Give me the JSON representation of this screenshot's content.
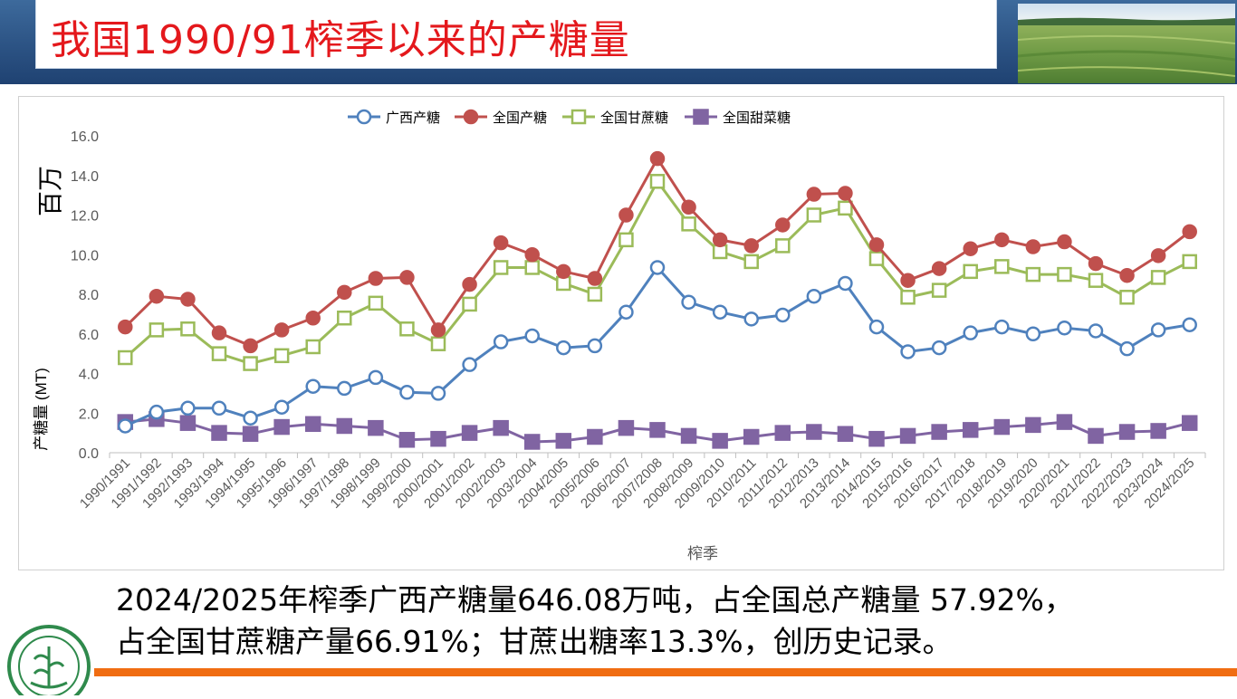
{
  "slide": {
    "title": "我国1990/91榨季以来的产糖量",
    "caption_line1": "2024/2025年榨季广西产糖量646.08万吨，占全国总产糖量 57.92%，",
    "caption_line2": "占全国甘蔗糖产量66.91%；甘蔗出糖率13.3%，创历史记录。"
  },
  "colors": {
    "header": "#2c5384",
    "title": "#e4181c",
    "accent_bar": "#f06d12",
    "series": [
      "#4f81bd",
      "#c0504d",
      "#9bbb59",
      "#8064a2"
    ]
  },
  "chart_data": {
    "type": "line",
    "xlabel": "榨季",
    "ylabel": "产糖量 (MT)",
    "unit_label": "百万",
    "ylim": [
      0,
      16
    ],
    "ytick_step": 2,
    "ytick_labels": [
      "0.0",
      "2.0",
      "4.0",
      "6.0",
      "8.0",
      "10.0",
      "12.0",
      "14.0",
      "16.0"
    ],
    "grid": false,
    "legend_position": "top",
    "categories": [
      "1990/1991",
      "1991/1992",
      "1992/1993",
      "1993/1994",
      "1994/1995",
      "1995/1996",
      "1996/1997",
      "1997/1998",
      "1998/1999",
      "1999/2000",
      "2000/2001",
      "2001/2002",
      "2002/2003",
      "2003/2004",
      "2004/2005",
      "2005/2006",
      "2006/2007",
      "2007/2008",
      "2008/2009",
      "2009/2010",
      "2010/2011",
      "2011/2012",
      "2012/2013",
      "2013/2014",
      "2014/2015",
      "2015/2016",
      "2016/2017",
      "2017/2018",
      "2018/2019",
      "2019/2020",
      "2020/2021",
      "2021/2022",
      "2022/2023",
      "2023/2024",
      "2024/2025"
    ],
    "series": [
      {
        "name": "广西产糖",
        "marker": "circle-open",
        "values": [
          1.35,
          2.05,
          2.25,
          2.25,
          1.75,
          2.3,
          3.35,
          3.25,
          3.8,
          3.05,
          3.0,
          4.45,
          5.6,
          5.9,
          5.3,
          5.4,
          7.1,
          9.35,
          7.6,
          7.1,
          6.75,
          6.95,
          7.9,
          8.55,
          6.35,
          5.1,
          5.3,
          6.05,
          6.35,
          6.0,
          6.3,
          6.15,
          5.25,
          6.2,
          6.46
        ]
      },
      {
        "name": "全国产糖",
        "marker": "circle-filled",
        "values": [
          6.35,
          7.9,
          7.75,
          6.05,
          5.4,
          6.2,
          6.8,
          8.1,
          8.8,
          8.85,
          6.2,
          8.5,
          10.6,
          10.0,
          9.15,
          8.8,
          12.0,
          14.85,
          12.4,
          10.75,
          10.45,
          11.5,
          13.05,
          13.1,
          10.5,
          8.7,
          9.3,
          10.3,
          10.75,
          10.4,
          10.65,
          9.55,
          8.95,
          9.95,
          11.16
        ]
      },
      {
        "name": "全国甘蔗糖",
        "marker": "square-open",
        "values": [
          4.8,
          6.2,
          6.25,
          5.0,
          4.5,
          4.9,
          5.35,
          6.8,
          7.55,
          6.25,
          5.5,
          7.5,
          9.35,
          9.35,
          8.55,
          8.0,
          10.75,
          13.7,
          11.55,
          10.15,
          9.65,
          10.45,
          12.0,
          12.35,
          9.8,
          7.85,
          8.2,
          9.15,
          9.4,
          9.0,
          9.0,
          8.7,
          7.85,
          8.85,
          9.65
        ]
      },
      {
        "name": "全国甜菜糖",
        "marker": "square-filled",
        "values": [
          1.55,
          1.7,
          1.5,
          1.0,
          0.95,
          1.3,
          1.45,
          1.35,
          1.25,
          0.65,
          0.7,
          1.0,
          1.25,
          0.55,
          0.6,
          0.8,
          1.25,
          1.15,
          0.85,
          0.6,
          0.8,
          1.0,
          1.05,
          0.95,
          0.7,
          0.85,
          1.05,
          1.15,
          1.3,
          1.4,
          1.55,
          0.85,
          1.05,
          1.1,
          1.5
        ]
      }
    ]
  }
}
